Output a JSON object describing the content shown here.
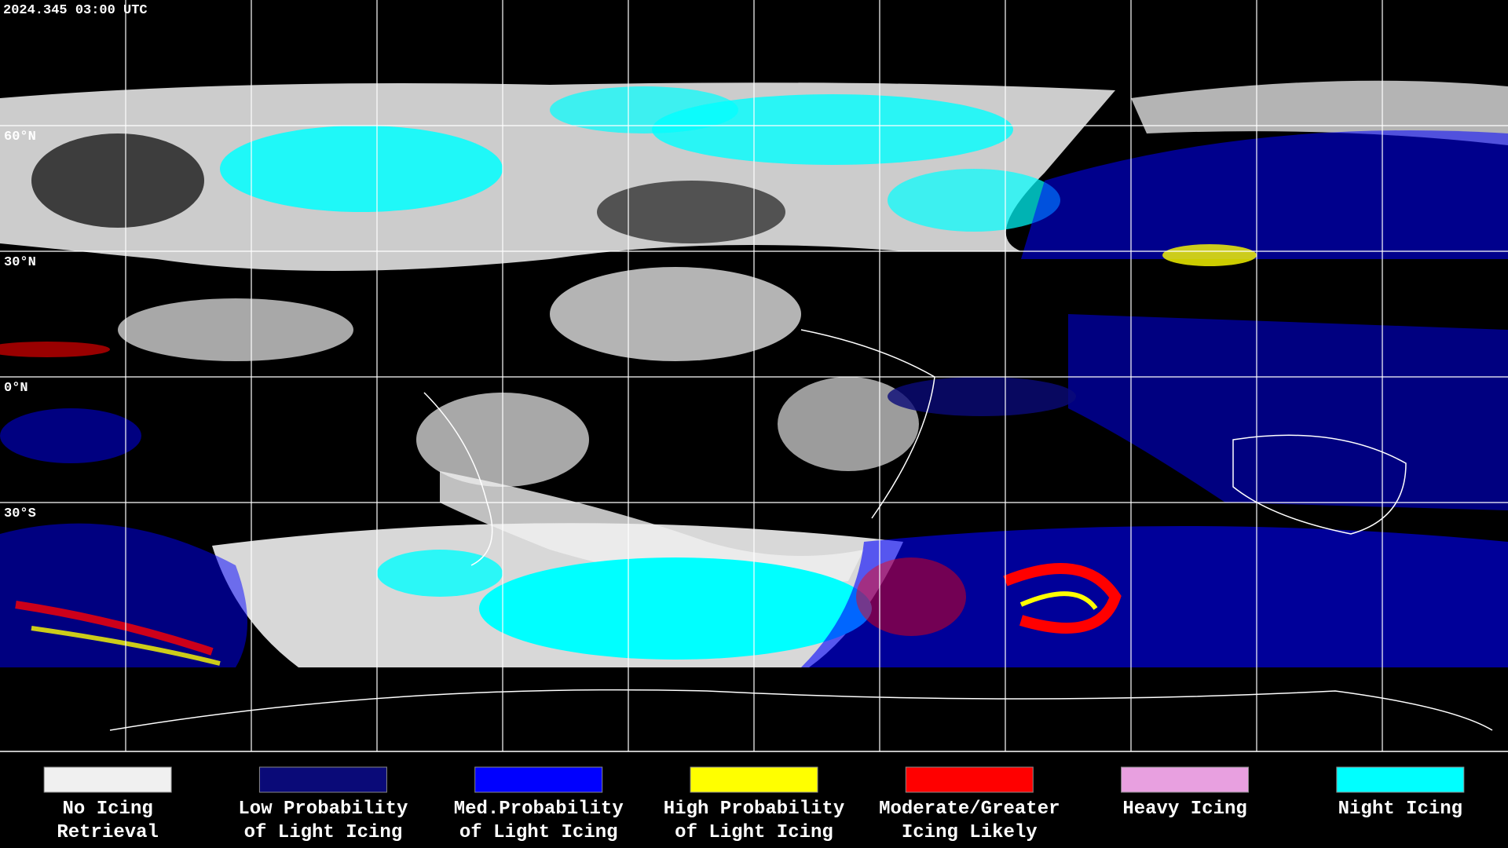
{
  "timestamp": "2024.345 03:00 UTC",
  "latitude_labels": [
    "60°N",
    "30°N",
    "0°N",
    "30°S"
  ],
  "legend": [
    {
      "color": "#f0f0f0",
      "label": [
        "No Icing",
        "Retrieval"
      ]
    },
    {
      "color": "#0a0a78",
      "label": [
        "Low Probability",
        "of Light Icing"
      ]
    },
    {
      "color": "#0000ff",
      "label": [
        "Med.Probability",
        "of Light Icing"
      ]
    },
    {
      "color": "#ffff00",
      "label": [
        "High Probability",
        "of Light Icing"
      ]
    },
    {
      "color": "#ff0000",
      "label": [
        "Moderate/Greater",
        "Icing Likely"
      ]
    },
    {
      "color": "#e8a0e0",
      "label": [
        "Heavy Icing"
      ]
    },
    {
      "color": "#00ffff",
      "label": [
        "Night Icing"
      ]
    }
  ]
}
